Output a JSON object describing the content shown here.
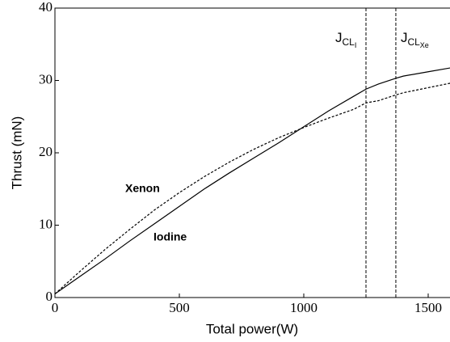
{
  "chart_data": {
    "type": "line",
    "x_label": "Total power(W)",
    "y_label": "Thrust (mN)",
    "xlim": [
      0,
      1600
    ],
    "ylim": [
      0,
      40
    ],
    "xticks": [
      0,
      500,
      1000,
      1500
    ],
    "yticks": [
      0,
      10,
      20,
      30,
      40
    ],
    "x": [
      0,
      100,
      200,
      300,
      400,
      500,
      600,
      700,
      800,
      900,
      1000,
      1100,
      1200,
      1250,
      1300,
      1370,
      1400,
      1500,
      1600
    ],
    "series": [
      {
        "name": "Iodine",
        "color": "#000000",
        "dash": "solid",
        "values": [
          0.5,
          2.9,
          5.3,
          7.8,
          10.2,
          12.6,
          15.0,
          17.2,
          19.3,
          21.4,
          23.6,
          25.8,
          27.8,
          28.8,
          29.5,
          30.3,
          30.6,
          31.2,
          31.8
        ]
      },
      {
        "name": "Xenon",
        "color": "#000000",
        "dash": "dashed",
        "values": [
          0.5,
          3.6,
          6.6,
          9.4,
          12.1,
          14.5,
          16.7,
          18.7,
          20.5,
          22.1,
          23.5,
          24.8,
          26.0,
          26.9,
          27.2,
          28.0,
          28.3,
          29.0,
          29.7
        ]
      }
    ],
    "vlines": [
      {
        "x": 1250,
        "label": "J",
        "sub": "CL",
        "subsub": "I"
      },
      {
        "x": 1370,
        "label": "J",
        "sub": "CL",
        "subsub": "Xe"
      }
    ]
  }
}
